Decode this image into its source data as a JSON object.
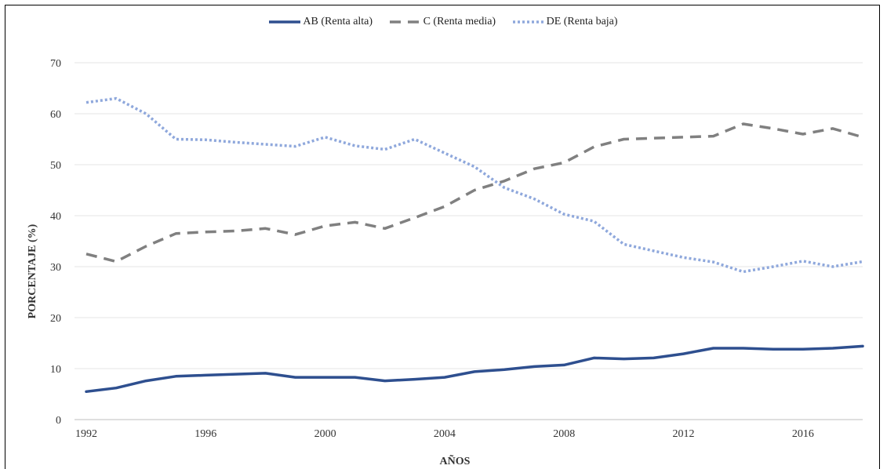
{
  "chart_data": {
    "type": "line",
    "title": "",
    "xlabel": "AÑOS",
    "ylabel": "PORCENTAJE (%)",
    "x": [
      1992,
      1993,
      1994,
      1995,
      1996,
      1997,
      1998,
      1999,
      2000,
      2001,
      2002,
      2003,
      2004,
      2005,
      2006,
      2007,
      2008,
      2009,
      2010,
      2011,
      2012,
      2013,
      2014,
      2015,
      2016,
      2017,
      2018
    ],
    "xticks": [
      1992,
      1996,
      2000,
      2004,
      2008,
      2012,
      2016
    ],
    "xtick_labels": [
      "1992",
      "1996",
      "2000",
      "2004",
      "2008",
      "2012",
      "2016"
    ],
    "xlim": [
      1992,
      2018
    ],
    "ylim": [
      0,
      70
    ],
    "yticks": [
      0,
      10,
      20,
      30,
      40,
      50,
      60,
      70
    ],
    "ytick_labels": [
      "0",
      "10",
      "20",
      "30",
      "40",
      "50",
      "60",
      "70"
    ],
    "grid": "horizontal",
    "legend_position": "top",
    "series": [
      {
        "name": "AB (Renta alta)",
        "color": "#2e4f8f",
        "style": "solid",
        "values": [
          5.5,
          6.2,
          7.6,
          8.5,
          8.7,
          8.9,
          9.1,
          8.3,
          8.3,
          8.3,
          7.6,
          7.9,
          8.3,
          9.4,
          9.8,
          10.4,
          10.7,
          12.1,
          11.9,
          12.1,
          12.9,
          14.0,
          14.0,
          13.8,
          13.8,
          14.0,
          14.4
        ]
      },
      {
        "name": "C (Renta media)",
        "color": "#808080",
        "style": "dashed",
        "values": [
          32.5,
          31.0,
          34.0,
          36.5,
          36.8,
          37.0,
          37.5,
          36.3,
          38.0,
          38.7,
          37.5,
          39.6,
          41.8,
          45.0,
          46.8,
          49.2,
          50.4,
          53.5,
          55.0,
          55.2,
          55.4,
          55.6,
          58.0,
          57.1,
          56.0,
          57.1,
          55.4
        ]
      },
      {
        "name": "DE (Renta baja)",
        "color": "#8fa8dc",
        "style": "dotted",
        "values": [
          62.2,
          63.0,
          60.0,
          55.0,
          54.9,
          54.4,
          54.0,
          53.6,
          55.4,
          53.7,
          53.0,
          55.0,
          52.3,
          49.6,
          45.5,
          43.3,
          40.3,
          38.9,
          34.4,
          33.1,
          31.8,
          30.9,
          29.0,
          30.0,
          31.1,
          30.0,
          31.0
        ]
      }
    ]
  }
}
